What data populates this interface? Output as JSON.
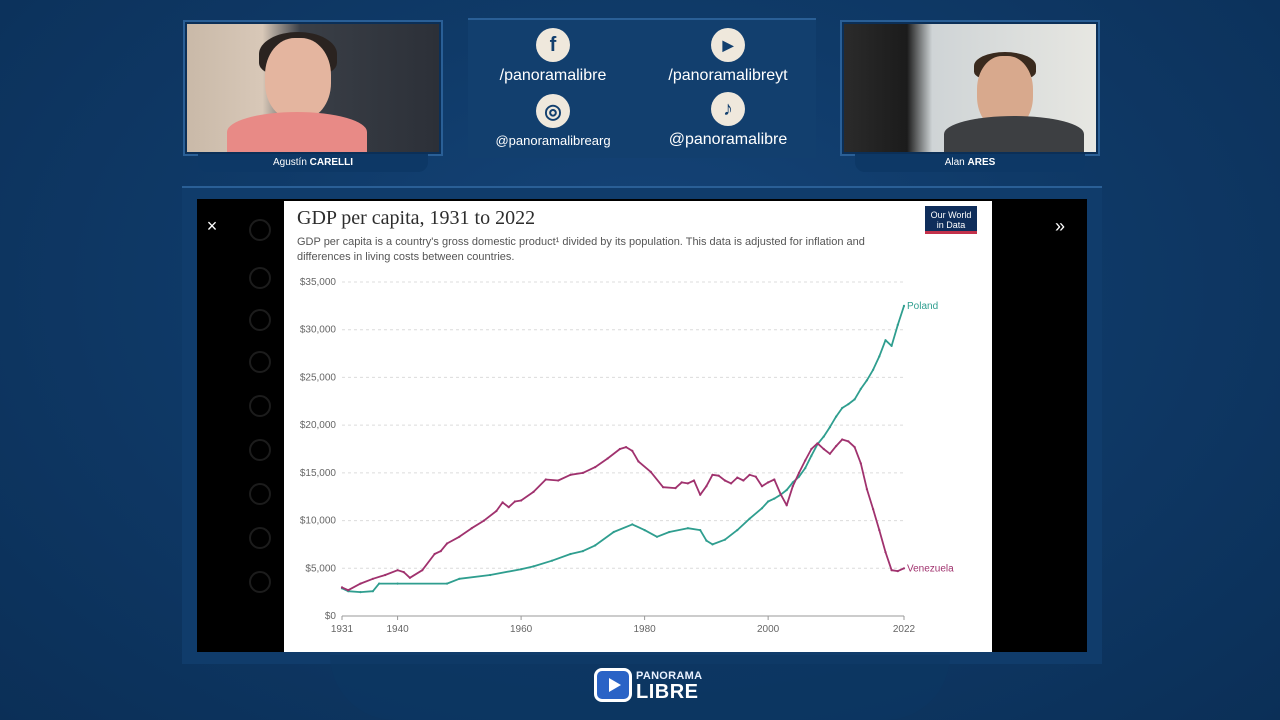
{
  "participants": {
    "left": {
      "first": "Agustín",
      "last": "CARELLI"
    },
    "right": {
      "first": "Alan",
      "last": "ARES"
    }
  },
  "social": [
    {
      "icon": "facebook-icon",
      "glyph": "f",
      "handle": "/panoramalibre"
    },
    {
      "icon": "youtube-icon",
      "glyph": "▶",
      "handle": "/panoramalibreyt"
    },
    {
      "icon": "instagram-icon",
      "glyph": "◎",
      "handle": "@panoramalibrearg"
    },
    {
      "icon": "tiktok-icon",
      "glyph": "♪",
      "handle": "@panoramalibre"
    }
  ],
  "viewer": {
    "close": "×",
    "next": "»"
  },
  "chart_card": {
    "title": "GDP per capita, 1931 to 2022",
    "subtitle": "GDP per capita is a country's gross domestic product¹ divided by its population. This data is adjusted for inflation and differences in living costs between countries.",
    "badge_line1": "Our World",
    "badge_line2": "in Data"
  },
  "chart_data": {
    "type": "line",
    "title": "GDP per capita, 1931 to 2022",
    "xlim": [
      1931,
      2022
    ],
    "ylim": [
      0,
      35000
    ],
    "x_ticks": [
      "1931",
      "1940",
      "1960",
      "1980",
      "2000",
      "2022"
    ],
    "y_ticks": [
      "$0",
      "$5,000",
      "$10,000",
      "$15,000",
      "$20,000",
      "$25,000",
      "$30,000",
      "$35,000"
    ],
    "grid": true,
    "series": [
      {
        "name": "Poland",
        "color": "#2f9e8f",
        "points": [
          [
            1931,
            2900
          ],
          [
            1932,
            2600
          ],
          [
            1934,
            2500
          ],
          [
            1936,
            2600
          ],
          [
            1937,
            3400
          ],
          [
            1940,
            3400
          ],
          [
            1948,
            3400
          ],
          [
            1950,
            3900
          ],
          [
            1955,
            4300
          ],
          [
            1960,
            4900
          ],
          [
            1962,
            5200
          ],
          [
            1965,
            5800
          ],
          [
            1968,
            6500
          ],
          [
            1970,
            6800
          ],
          [
            1972,
            7400
          ],
          [
            1975,
            8800
          ],
          [
            1978,
            9600
          ],
          [
            1980,
            9000
          ],
          [
            1982,
            8300
          ],
          [
            1984,
            8800
          ],
          [
            1987,
            9200
          ],
          [
            1989,
            9000
          ],
          [
            1990,
            7900
          ],
          [
            1991,
            7500
          ],
          [
            1993,
            8000
          ],
          [
            1995,
            9000
          ],
          [
            1997,
            10200
          ],
          [
            1999,
            11300
          ],
          [
            2000,
            12000
          ],
          [
            2001,
            12300
          ],
          [
            2002,
            12700
          ],
          [
            2003,
            13200
          ],
          [
            2004,
            14000
          ],
          [
            2005,
            14600
          ],
          [
            2006,
            15500
          ],
          [
            2007,
            16800
          ],
          [
            2008,
            18000
          ],
          [
            2009,
            18800
          ],
          [
            2010,
            19800
          ],
          [
            2011,
            20900
          ],
          [
            2012,
            21800
          ],
          [
            2013,
            22200
          ],
          [
            2014,
            22700
          ],
          [
            2015,
            23800
          ],
          [
            2016,
            24700
          ],
          [
            2017,
            25800
          ],
          [
            2018,
            27200
          ],
          [
            2019,
            28900
          ],
          [
            2020,
            28300
          ],
          [
            2021,
            30500
          ],
          [
            2022,
            32500
          ]
        ]
      },
      {
        "name": "Venezuela",
        "color": "#a0326e",
        "points": [
          [
            1931,
            3000
          ],
          [
            1932,
            2700
          ],
          [
            1934,
            3400
          ],
          [
            1936,
            3900
          ],
          [
            1938,
            4300
          ],
          [
            1940,
            4800
          ],
          [
            1941,
            4600
          ],
          [
            1942,
            4000
          ],
          [
            1944,
            4800
          ],
          [
            1946,
            6500
          ],
          [
            1947,
            6800
          ],
          [
            1948,
            7600
          ],
          [
            1950,
            8300
          ],
          [
            1952,
            9200
          ],
          [
            1954,
            10000
          ],
          [
            1956,
            11000
          ],
          [
            1957,
            11900
          ],
          [
            1958,
            11400
          ],
          [
            1959,
            12000
          ],
          [
            1960,
            12100
          ],
          [
            1962,
            13000
          ],
          [
            1964,
            14300
          ],
          [
            1966,
            14200
          ],
          [
            1968,
            14800
          ],
          [
            1970,
            15000
          ],
          [
            1972,
            15600
          ],
          [
            1974,
            16500
          ],
          [
            1976,
            17500
          ],
          [
            1977,
            17700
          ],
          [
            1978,
            17300
          ],
          [
            1979,
            16200
          ],
          [
            1981,
            15100
          ],
          [
            1983,
            13500
          ],
          [
            1985,
            13400
          ],
          [
            1986,
            14000
          ],
          [
            1987,
            13900
          ],
          [
            1988,
            14200
          ],
          [
            1989,
            12700
          ],
          [
            1990,
            13600
          ],
          [
            1991,
            14800
          ],
          [
            1992,
            14700
          ],
          [
            1993,
            14200
          ],
          [
            1994,
            13900
          ],
          [
            1995,
            14500
          ],
          [
            1996,
            14200
          ],
          [
            1997,
            14800
          ],
          [
            1998,
            14600
          ],
          [
            1999,
            13600
          ],
          [
            2000,
            14000
          ],
          [
            2001,
            14300
          ],
          [
            2002,
            12800
          ],
          [
            2003,
            11600
          ],
          [
            2004,
            13600
          ],
          [
            2005,
            15000
          ],
          [
            2006,
            16300
          ],
          [
            2007,
            17500
          ],
          [
            2008,
            18100
          ],
          [
            2009,
            17500
          ],
          [
            2010,
            17000
          ],
          [
            2011,
            17800
          ],
          [
            2012,
            18500
          ],
          [
            2013,
            18300
          ],
          [
            2014,
            17700
          ],
          [
            2015,
            16000
          ],
          [
            2016,
            13300
          ],
          [
            2017,
            11200
          ],
          [
            2018,
            9000
          ],
          [
            2019,
            6700
          ],
          [
            2020,
            4800
          ],
          [
            2021,
            4700
          ],
          [
            2022,
            5000
          ]
        ]
      }
    ]
  },
  "brand": {
    "line1": "PANORAMA",
    "line2": "LIBRE"
  }
}
